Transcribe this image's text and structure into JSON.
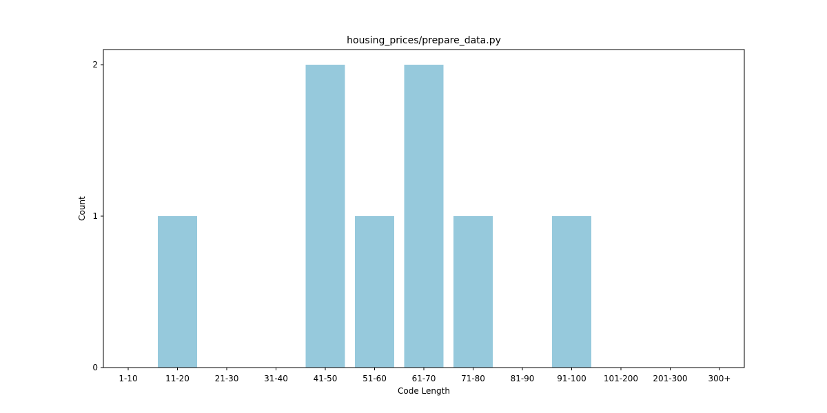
{
  "chart_data": {
    "type": "bar",
    "title": "housing_prices/prepare_data.py",
    "xlabel": "Code Length",
    "ylabel": "Count",
    "categories": [
      "1-10",
      "11-20",
      "21-30",
      "31-40",
      "41-50",
      "51-60",
      "61-70",
      "71-80",
      "81-90",
      "91-100",
      "101-200",
      "201-300",
      "300+"
    ],
    "values": [
      0,
      1,
      0,
      0,
      2,
      1,
      2,
      1,
      0,
      1,
      0,
      0,
      0
    ],
    "ylim": [
      0,
      2.1
    ],
    "yticks": [
      0,
      1,
      2
    ],
    "grid": false,
    "legend": "none",
    "bar_color": "#96c9dc"
  }
}
